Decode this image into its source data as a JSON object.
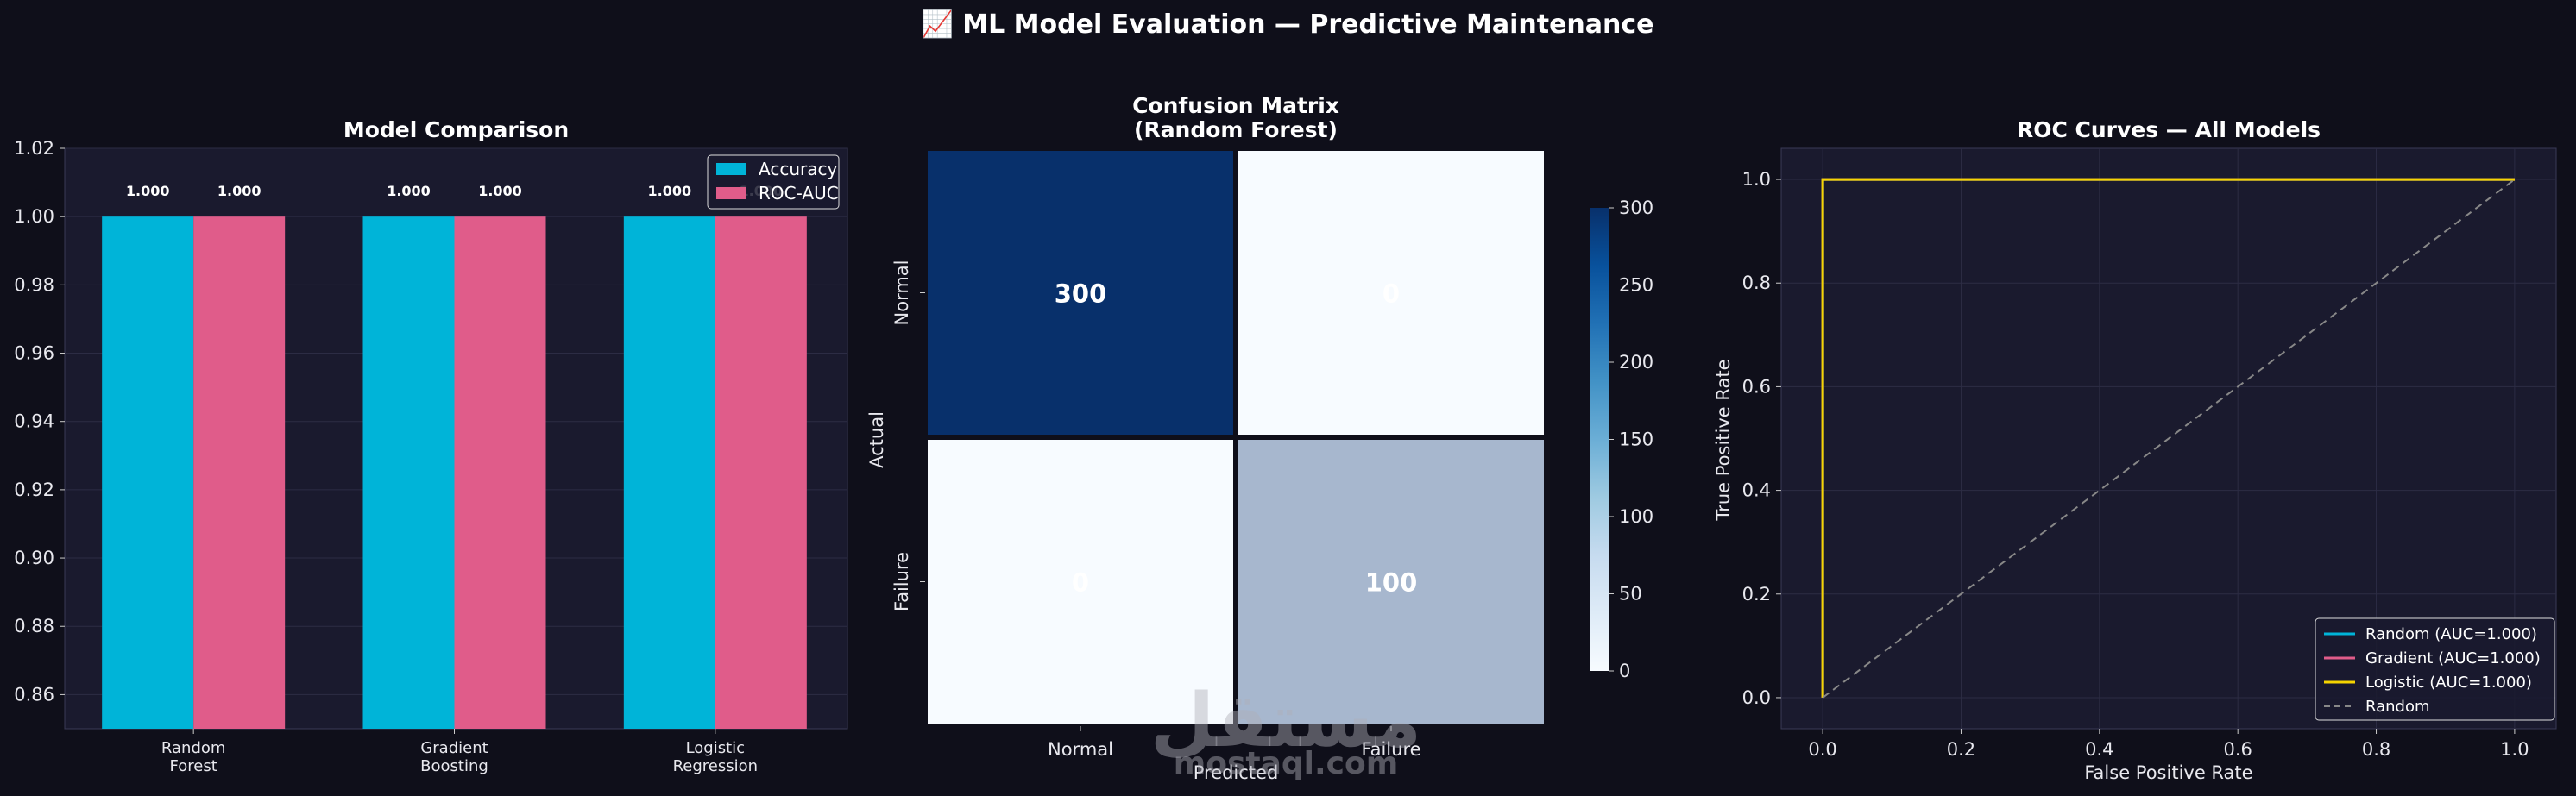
{
  "figure": {
    "title": "📈 ML Model Evaluation — Predictive Maintenance",
    "background": "#0f0f1a",
    "panel_background": "#1a1a2e"
  },
  "watermark": {
    "arabic": "مستقل",
    "latin": "mostaql.com"
  },
  "chart_data": [
    {
      "type": "bar",
      "title": "Model Comparison",
      "categories": [
        "Random\nForest",
        "Gradient\nBoosting",
        "Logistic\nRegression"
      ],
      "series": [
        {
          "name": "Accuracy",
          "values": [
            1.0,
            1.0,
            1.0
          ],
          "color": "#00b4d8"
        },
        {
          "name": "ROC-AUC",
          "values": [
            1.0,
            1.0,
            1.0
          ],
          "color": "#e05c8a"
        }
      ],
      "data_labels": [
        "1.000",
        "1.000",
        "1.000",
        "1.000",
        "1.000",
        "1.000"
      ],
      "ylim": [
        0.85,
        1.02
      ],
      "yticks": [
        "0.86",
        "0.88",
        "0.90",
        "0.92",
        "0.94",
        "0.96",
        "0.98",
        "1.00",
        "1.02"
      ],
      "xlabel": "",
      "ylabel": "",
      "legend_position": "top-right",
      "grid": "y"
    },
    {
      "type": "heatmap",
      "title": "Confusion Matrix\n(Random Forest)",
      "row_labels": [
        "Normal",
        "Failure"
      ],
      "col_labels": [
        "Normal",
        "Failure"
      ],
      "values": [
        [
          300,
          0
        ],
        [
          0,
          100
        ]
      ],
      "cell_text": [
        [
          "300",
          "0"
        ],
        [
          "0",
          "100"
        ]
      ],
      "xlabel": "Predicted",
      "ylabel": "Actual",
      "colormap": "Blues",
      "colorbar_range": [
        0,
        300
      ],
      "colorbar_ticks": [
        "0",
        "50",
        "100",
        "150",
        "200",
        "250",
        "300"
      ]
    },
    {
      "type": "line",
      "title": "ROC Curves — All Models",
      "series": [
        {
          "name": "Random (AUC=1.000)",
          "x": [
            0.0,
            0.0,
            1.0
          ],
          "y": [
            0.0,
            1.0,
            1.0
          ],
          "color": "#00b4d8"
        },
        {
          "name": "Gradient (AUC=1.000)",
          "x": [
            0.0,
            0.0,
            1.0
          ],
          "y": [
            0.0,
            1.0,
            1.0
          ],
          "color": "#e05c8a"
        },
        {
          "name": "Logistic (AUC=1.000)",
          "x": [
            0.0,
            0.0,
            1.0
          ],
          "y": [
            0.0,
            1.0,
            1.0
          ],
          "color": "#f5d400"
        },
        {
          "name": "Random",
          "x": [
            0.0,
            1.0
          ],
          "y": [
            0.0,
            1.0
          ],
          "color": "#888888",
          "dashed": true
        }
      ],
      "xlim": [
        -0.06,
        1.06
      ],
      "ylim": [
        -0.06,
        1.06
      ],
      "xticks": [
        "0.0",
        "0.2",
        "0.4",
        "0.6",
        "0.8",
        "1.0"
      ],
      "yticks": [
        "0.0",
        "0.2",
        "0.4",
        "0.6",
        "0.8",
        "1.0"
      ],
      "xlabel": "False Positive Rate",
      "ylabel": "True Positive Rate",
      "legend_position": "lower-right",
      "grid": "both"
    }
  ]
}
